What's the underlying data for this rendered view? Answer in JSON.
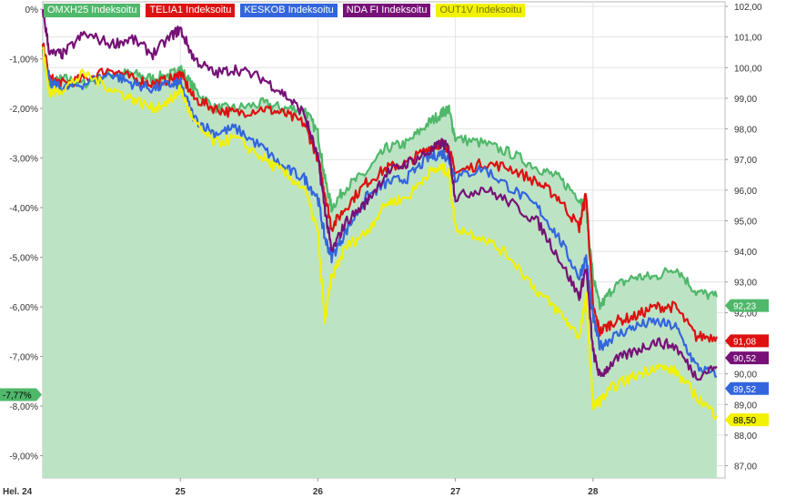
{
  "chart_data": {
    "type": "line",
    "left_axis": {
      "ticks": [
        "0%",
        "-1,00%",
        "-2,00%",
        "-3,00%",
        "-4,00%",
        "-5,00%",
        "-6,00%",
        "-7,00%",
        "-8,00%",
        "-9,00%"
      ],
      "values": [
        0,
        -1,
        -2,
        -3,
        -4,
        -5,
        -6,
        -7,
        -8,
        -9
      ],
      "range": [
        -9.45,
        0.15
      ]
    },
    "right_axis": {
      "ticks": [
        "102,00",
        "101,00",
        "100,00",
        "99,00",
        "98,00",
        "97,00",
        "96,00",
        "95,00",
        "94,00",
        "93,00",
        "92,00",
        "91,00",
        "90,00",
        "89,00",
        "88,00",
        "87,00"
      ],
      "values": [
        102,
        101,
        100,
        99,
        98,
        97,
        96,
        95,
        94,
        93,
        92,
        91,
        90,
        89,
        88,
        87
      ],
      "range": [
        86.6,
        102.15
      ]
    },
    "x_axis": {
      "ticks": [
        "Hel. 24",
        "25",
        "26",
        "27",
        "28"
      ],
      "values": [
        24,
        25,
        26,
        27,
        28
      ],
      "range": [
        24.0,
        28.96
      ]
    },
    "grid": true,
    "legend_position": "top-left",
    "series": [
      {
        "name": "OMXH25 Indeksoitu",
        "color": "#4fb86a",
        "fill": "#bde3c5",
        "area": true,
        "last_label": "92,23",
        "x": [
          24.0,
          24.05,
          24.15,
          24.3,
          24.5,
          24.65,
          24.8,
          24.95,
          25.0,
          25.1,
          25.25,
          25.4,
          25.6,
          25.75,
          25.9,
          26.0,
          26.05,
          26.1,
          26.2,
          26.35,
          26.5,
          26.65,
          26.8,
          26.9,
          26.95,
          27.0,
          27.2,
          27.4,
          27.6,
          27.75,
          27.9,
          27.95,
          28.0,
          28.05,
          28.15,
          28.3,
          28.45,
          28.6,
          28.75,
          28.9
        ],
        "y": [
          -0.7,
          -1.5,
          -1.4,
          -1.5,
          -1.3,
          -1.3,
          -1.4,
          -1.3,
          -1.2,
          -1.6,
          -2.0,
          -2.0,
          -1.9,
          -2.0,
          -2.0,
          -2.5,
          -3.4,
          -4.0,
          -3.6,
          -3.3,
          -2.8,
          -2.7,
          -2.3,
          -2.1,
          -2.0,
          -2.6,
          -2.7,
          -2.9,
          -3.2,
          -3.4,
          -3.8,
          -4.0,
          -5.4,
          -6.0,
          -5.6,
          -5.4,
          -5.4,
          -5.2,
          -5.7,
          -5.8
        ]
      },
      {
        "name": "TELIA1 Indeksoitu",
        "color": "#dd1111",
        "area": false,
        "last_label": "91,08",
        "x": [
          24.0,
          24.05,
          24.15,
          24.3,
          24.5,
          24.65,
          24.8,
          24.95,
          25.0,
          25.1,
          25.25,
          25.4,
          25.6,
          25.75,
          25.9,
          26.0,
          26.05,
          26.1,
          26.2,
          26.35,
          26.5,
          26.65,
          26.8,
          26.9,
          26.95,
          27.0,
          27.2,
          27.4,
          27.6,
          27.75,
          27.9,
          27.95,
          28.0,
          28.05,
          28.15,
          28.3,
          28.45,
          28.6,
          28.75,
          28.9
        ],
        "y": [
          -0.7,
          -1.4,
          -1.5,
          -1.4,
          -1.2,
          -1.4,
          -1.5,
          -1.4,
          -1.3,
          -1.8,
          -2.0,
          -2.1,
          -2.0,
          -2.1,
          -2.3,
          -3.0,
          -3.7,
          -4.4,
          -4.0,
          -3.5,
          -3.2,
          -3.1,
          -2.8,
          -2.7,
          -2.8,
          -3.3,
          -3.1,
          -3.2,
          -3.5,
          -3.8,
          -4.4,
          -3.7,
          -6.0,
          -6.5,
          -6.3,
          -6.2,
          -6.0,
          -6.0,
          -6.6,
          -6.6
        ]
      },
      {
        "name": "KESKOB Indeksoitu",
        "color": "#3366dd",
        "area": false,
        "last_label": "89,52",
        "x": [
          24.0,
          24.05,
          24.15,
          24.3,
          24.5,
          24.65,
          24.8,
          24.95,
          25.0,
          25.1,
          25.25,
          25.4,
          25.6,
          25.75,
          25.9,
          26.0,
          26.05,
          26.1,
          26.2,
          26.35,
          26.5,
          26.65,
          26.8,
          26.9,
          26.95,
          27.0,
          27.2,
          27.4,
          27.6,
          27.75,
          27.9,
          27.95,
          28.0,
          28.05,
          28.15,
          28.3,
          28.45,
          28.6,
          28.75,
          28.9
        ],
        "y": [
          -0.8,
          -1.5,
          -1.6,
          -1.5,
          -1.3,
          -1.5,
          -1.6,
          -1.5,
          -1.5,
          -2.2,
          -2.5,
          -2.4,
          -2.8,
          -3.2,
          -3.4,
          -3.8,
          -4.6,
          -5.0,
          -4.5,
          -3.8,
          -3.5,
          -3.4,
          -3.0,
          -2.9,
          -3.0,
          -3.4,
          -3.2,
          -3.6,
          -4.0,
          -4.6,
          -5.4,
          -5.0,
          -6.2,
          -6.8,
          -6.6,
          -6.4,
          -6.3,
          -6.4,
          -7.2,
          -7.4
        ]
      },
      {
        "name": "NDA FI Indeksoitu",
        "color": "#771177",
        "area": false,
        "last_label": "90,52",
        "x": [
          24.0,
          24.05,
          24.15,
          24.3,
          24.5,
          24.65,
          24.8,
          24.95,
          25.0,
          25.1,
          25.25,
          25.4,
          25.6,
          25.75,
          25.9,
          26.0,
          26.05,
          26.1,
          26.2,
          26.35,
          26.5,
          26.65,
          26.8,
          26.9,
          26.95,
          27.0,
          27.2,
          27.4,
          27.6,
          27.75,
          27.9,
          27.95,
          28.0,
          28.05,
          28.15,
          28.3,
          28.45,
          28.6,
          28.75,
          28.9
        ],
        "y": [
          0.0,
          -0.9,
          -0.9,
          -0.5,
          -0.7,
          -0.6,
          -0.9,
          -0.5,
          -0.4,
          -1.0,
          -1.3,
          -1.2,
          -1.4,
          -1.7,
          -2.1,
          -3.0,
          -4.0,
          -4.9,
          -4.3,
          -3.9,
          -3.3,
          -3.1,
          -2.9,
          -2.7,
          -2.8,
          -3.8,
          -3.6,
          -3.9,
          -4.3,
          -5.0,
          -5.8,
          -5.2,
          -6.9,
          -7.4,
          -7.1,
          -6.9,
          -6.7,
          -6.8,
          -7.4,
          -7.2
        ]
      },
      {
        "name": "OUT1V Indeksoitu",
        "color": "#f2f200",
        "area": false,
        "last_label": "88,50",
        "x": [
          24.0,
          24.05,
          24.15,
          24.3,
          24.5,
          24.65,
          24.8,
          24.95,
          25.0,
          25.1,
          25.25,
          25.4,
          25.6,
          25.75,
          25.9,
          26.0,
          26.05,
          26.1,
          26.2,
          26.35,
          26.5,
          26.65,
          26.8,
          26.9,
          26.95,
          27.0,
          27.2,
          27.4,
          27.6,
          27.75,
          27.9,
          27.95,
          28.0,
          28.05,
          28.15,
          28.3,
          28.45,
          28.6,
          28.75,
          28.9
        ],
        "y": [
          -0.8,
          -1.7,
          -1.6,
          -1.3,
          -1.6,
          -1.8,
          -2.0,
          -1.8,
          -1.6,
          -2.3,
          -2.7,
          -2.6,
          -3.0,
          -3.3,
          -3.6,
          -4.5,
          -6.3,
          -5.4,
          -4.8,
          -4.5,
          -3.9,
          -3.8,
          -3.3,
          -3.2,
          -3.3,
          -4.4,
          -4.6,
          -5.0,
          -5.7,
          -6.1,
          -6.6,
          -5.8,
          -8.0,
          -7.9,
          -7.6,
          -7.4,
          -7.2,
          -7.3,
          -7.8,
          -8.2
        ]
      }
    ],
    "left_marker": {
      "label": "-7,77%",
      "value": -7.77,
      "color": "#4fb86a"
    }
  }
}
